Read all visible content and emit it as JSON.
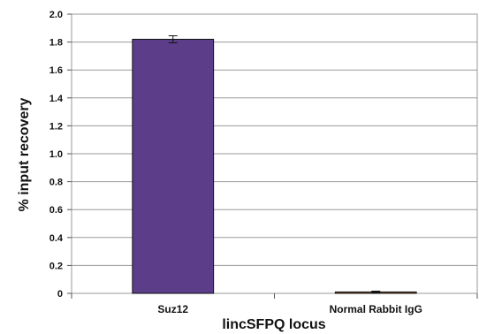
{
  "chart_data": {
    "type": "bar",
    "title": "",
    "xlabel": "lincSFPQ locus",
    "ylabel": "% input recovery",
    "categories": [
      "Suz12",
      "Normal Rabbit IgG"
    ],
    "series": [
      {
        "values": [
          1.82,
          0.01
        ],
        "errors": [
          0.025,
          0.006
        ],
        "colors": [
          "#5b3d8a",
          "#8a5a2b"
        ]
      }
    ],
    "ylim": [
      0,
      2.0
    ],
    "yticks": [
      0,
      0.2,
      0.4,
      0.6,
      0.8,
      1.0,
      1.2,
      1.4,
      1.6,
      1.8,
      2.0
    ],
    "ytick_labels": [
      "0",
      "0.2",
      "0.4",
      "0.6",
      "0.8",
      "1.0",
      "1.2",
      "1.4",
      "1.6",
      "1.8",
      "2.0"
    ],
    "grid": true,
    "legend": "none"
  }
}
